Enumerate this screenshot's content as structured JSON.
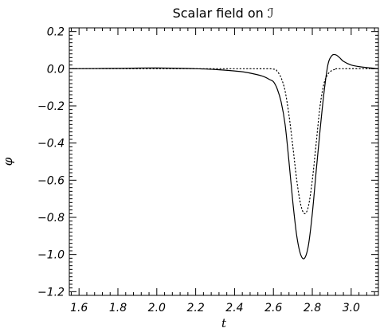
{
  "chart_data": {
    "type": "line",
    "title": "Scalar field on ℐ",
    "xlabel": "t",
    "ylabel": "φ",
    "xlim": [
      1.55,
      3.14
    ],
    "ylim": [
      -1.22,
      0.22
    ],
    "x_ticks": [
      1.6,
      1.8,
      2.0,
      2.2,
      2.4,
      2.6,
      2.8,
      3.0
    ],
    "x_tick_labels": [
      "1.6",
      "1.8",
      "2.0",
      "2.2",
      "2.4",
      "2.6",
      "2.8",
      "3.0"
    ],
    "y_ticks": [
      0.2,
      0.0,
      -0.2,
      -0.4,
      -0.6,
      -0.8,
      -1.0,
      -1.2
    ],
    "y_tick_labels": [
      "0.2",
      "0.0",
      "−0.2",
      "−0.4",
      "−0.6",
      "−0.8",
      "−1.0",
      "−1.2"
    ],
    "grid": false,
    "series": [
      {
        "style": "solid",
        "color": "#000000",
        "x": [
          1.55,
          1.8,
          2.0,
          2.2,
          2.3,
          2.4,
          2.45,
          2.5,
          2.55,
          2.58,
          2.6,
          2.62,
          2.64,
          2.66,
          2.68,
          2.7,
          2.72,
          2.74,
          2.76,
          2.78,
          2.8,
          2.82,
          2.84,
          2.86,
          2.88,
          2.9,
          2.92,
          2.94,
          2.96,
          3.0,
          3.05,
          3.1,
          3.14
        ],
        "y": [
          0.0,
          0.002,
          0.004,
          0.0,
          -0.004,
          -0.012,
          -0.018,
          -0.028,
          -0.042,
          -0.058,
          -0.07,
          -0.11,
          -0.18,
          -0.3,
          -0.5,
          -0.72,
          -0.9,
          -1.0,
          -1.02,
          -0.95,
          -0.78,
          -0.55,
          -0.33,
          -0.13,
          0.02,
          0.07,
          0.075,
          0.06,
          0.04,
          0.02,
          0.01,
          0.004,
          0.0
        ]
      },
      {
        "style": "dotted",
        "color": "#000000",
        "x": [
          1.55,
          2.0,
          2.5,
          2.6,
          2.62,
          2.64,
          2.66,
          2.68,
          2.7,
          2.72,
          2.74,
          2.76,
          2.78,
          2.8,
          2.82,
          2.84,
          2.86,
          2.88,
          2.9,
          2.92,
          2.94,
          3.14
        ],
        "y": [
          0.0,
          0.0,
          0.0,
          -0.002,
          -0.015,
          -0.05,
          -0.12,
          -0.25,
          -0.42,
          -0.6,
          -0.73,
          -0.78,
          -0.74,
          -0.6,
          -0.4,
          -0.2,
          -0.08,
          -0.03,
          -0.01,
          -0.003,
          0.0,
          0.0
        ]
      }
    ]
  }
}
